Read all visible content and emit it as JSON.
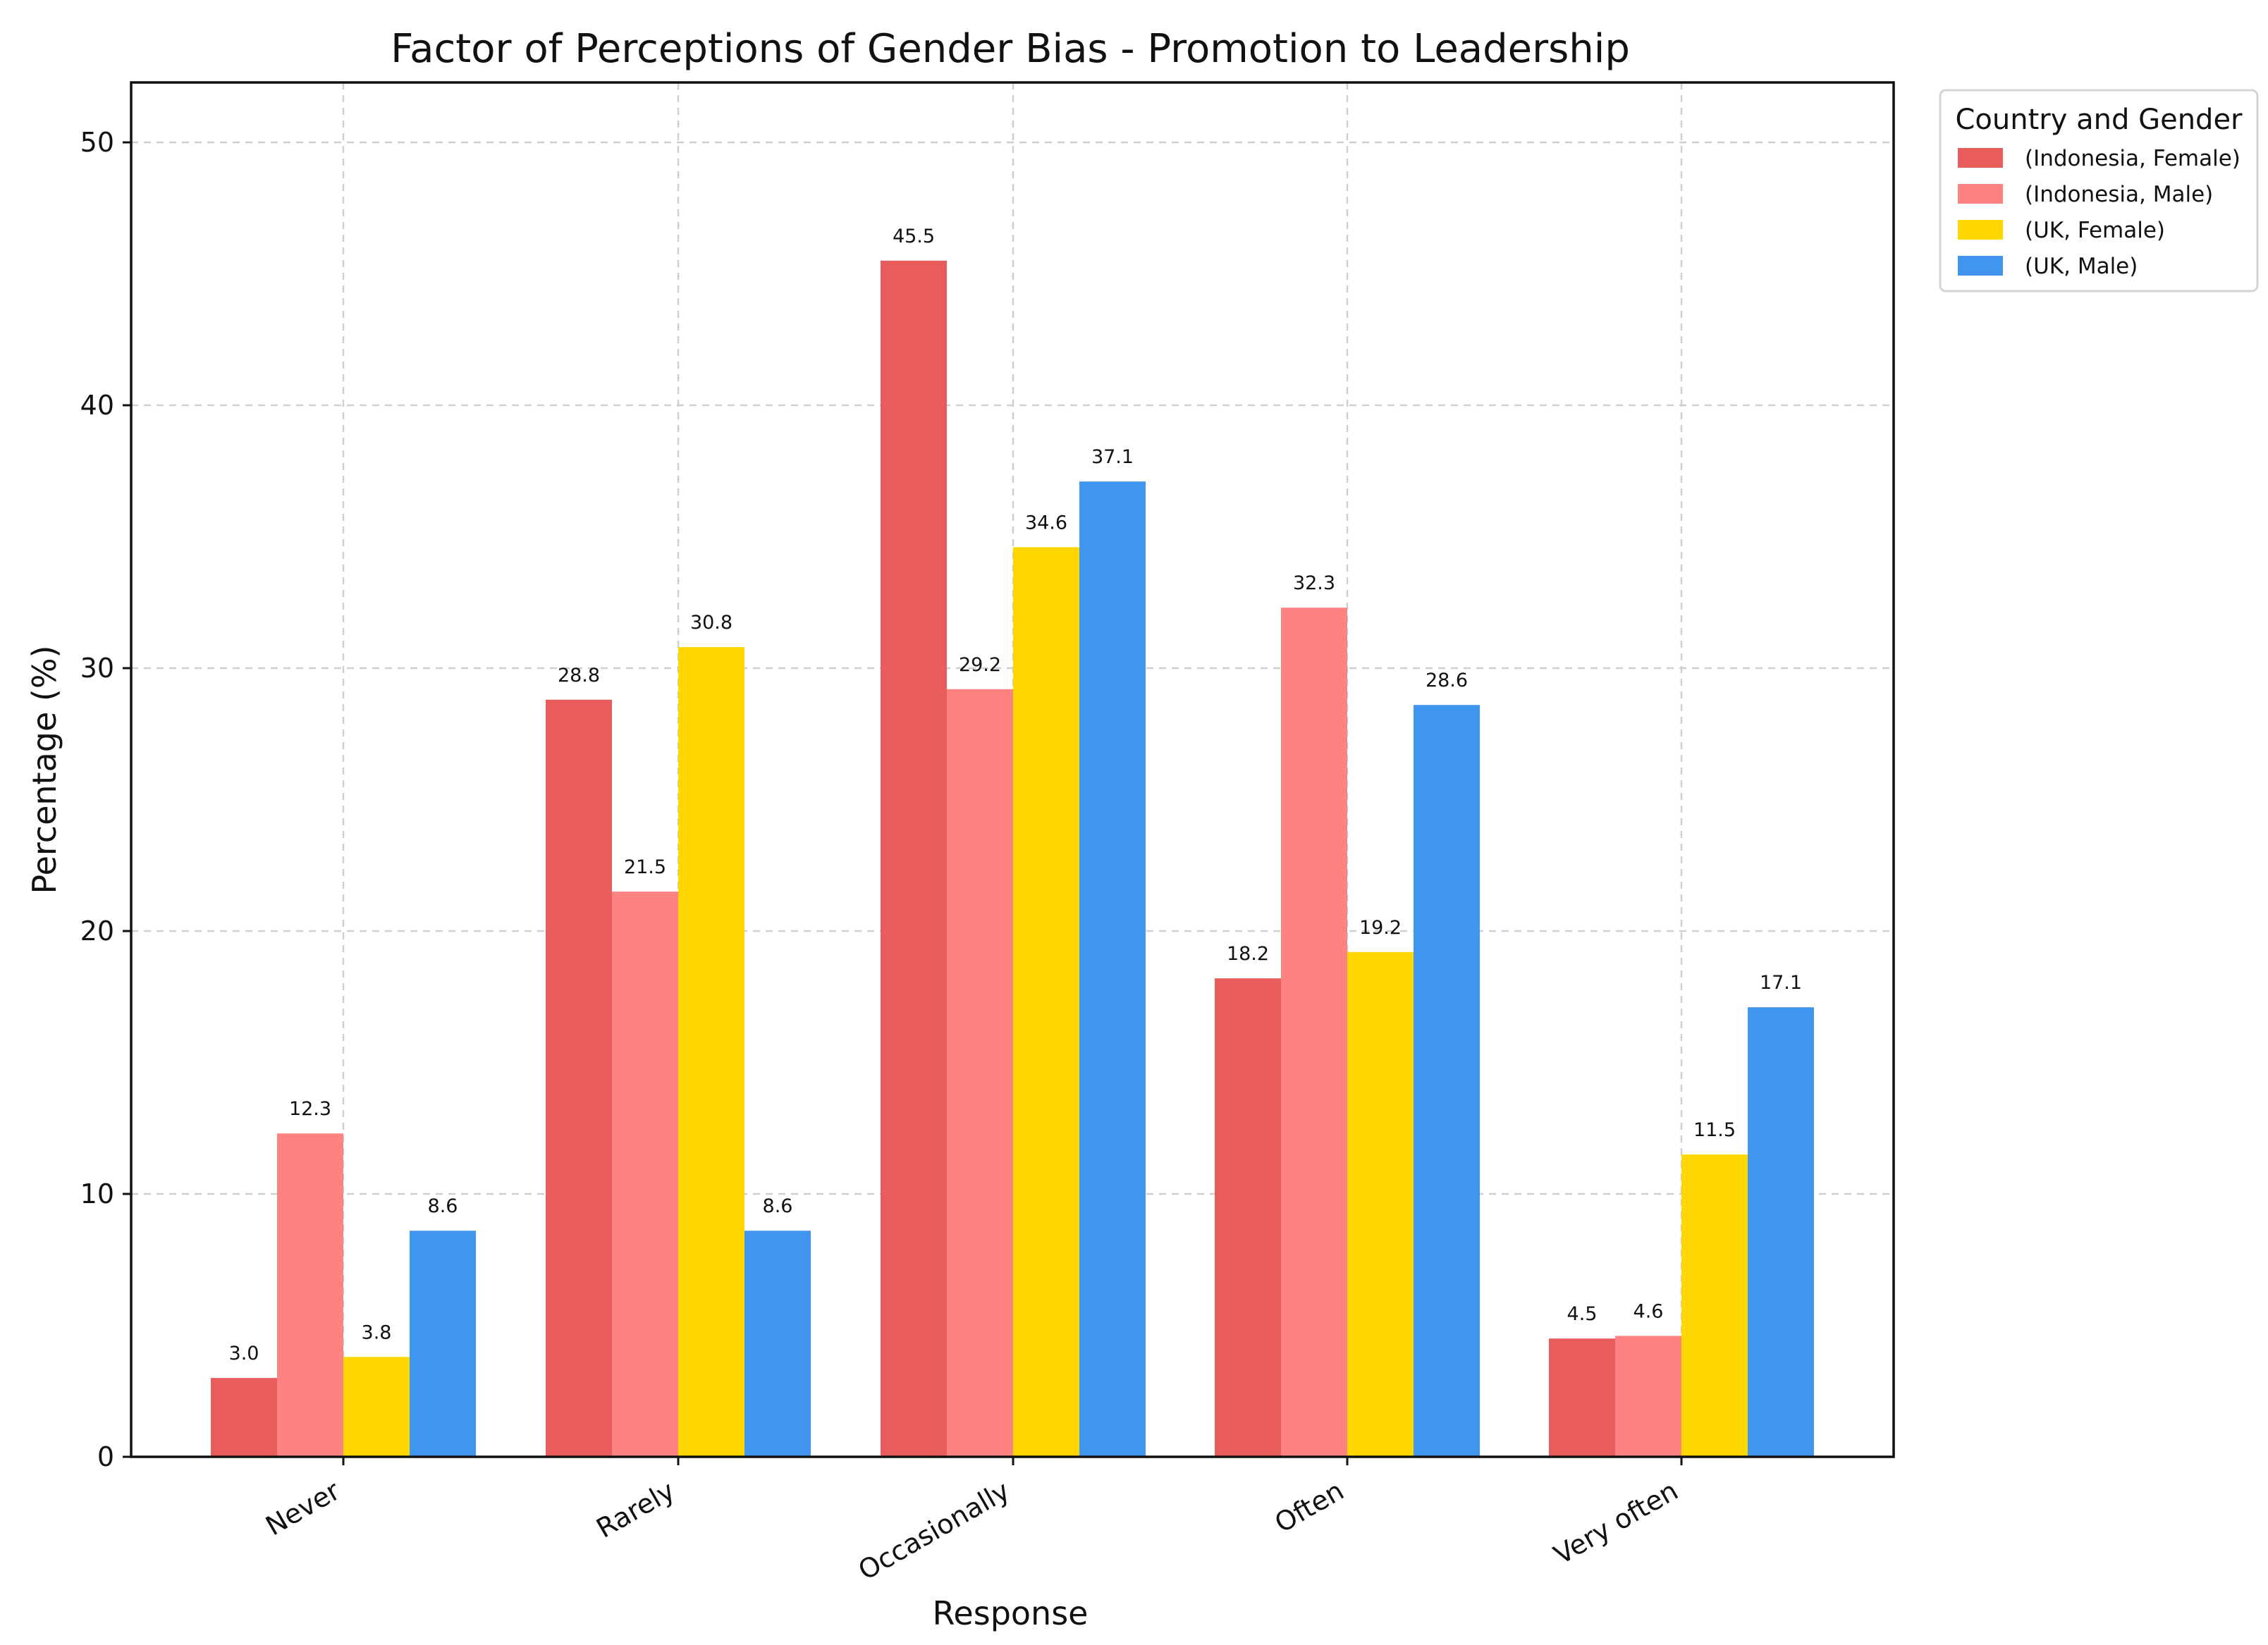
{
  "chart_data": {
    "type": "bar",
    "title": "Factor of Perceptions of Gender Bias - Promotion to Leadership",
    "xlabel": "Response",
    "ylabel": "Percentage (%)",
    "ylim": [
      0,
      52.3
    ],
    "yticks": [
      0,
      10,
      20,
      30,
      40,
      50
    ],
    "grid": true,
    "categories": [
      "Never",
      "Rarely",
      "Occasionally",
      "Often",
      "Very often"
    ],
    "legend": {
      "title": "Country and Gender",
      "placement": "outside-top-right"
    },
    "series": [
      {
        "name": "(Indonesia, Female)",
        "color": "#E85C5C",
        "values": [
          3.0,
          28.8,
          45.5,
          18.2,
          4.5
        ],
        "labels": [
          "3.0",
          "28.8",
          "45.5",
          "18.2",
          "4.5"
        ]
      },
      {
        "name": "(Indonesia, Male)",
        "color": "#FF8282",
        "values": [
          12.3,
          21.5,
          29.2,
          32.3,
          4.6
        ],
        "labels": [
          "12.3",
          "21.5",
          "29.2",
          "32.3",
          "4.6"
        ]
      },
      {
        "name": "(UK, Female)",
        "color": "#FFD700",
        "values": [
          3.8,
          30.8,
          34.6,
          19.2,
          11.5
        ],
        "labels": [
          "3.8",
          "30.8",
          "34.6",
          "19.2",
          "11.5"
        ]
      },
      {
        "name": "(UK, Male)",
        "color": "#4095EE",
        "values": [
          8.6,
          8.6,
          37.1,
          28.6,
          17.1
        ],
        "labels": [
          "8.6",
          "8.6",
          "37.1",
          "28.6",
          "17.1"
        ]
      }
    ]
  }
}
